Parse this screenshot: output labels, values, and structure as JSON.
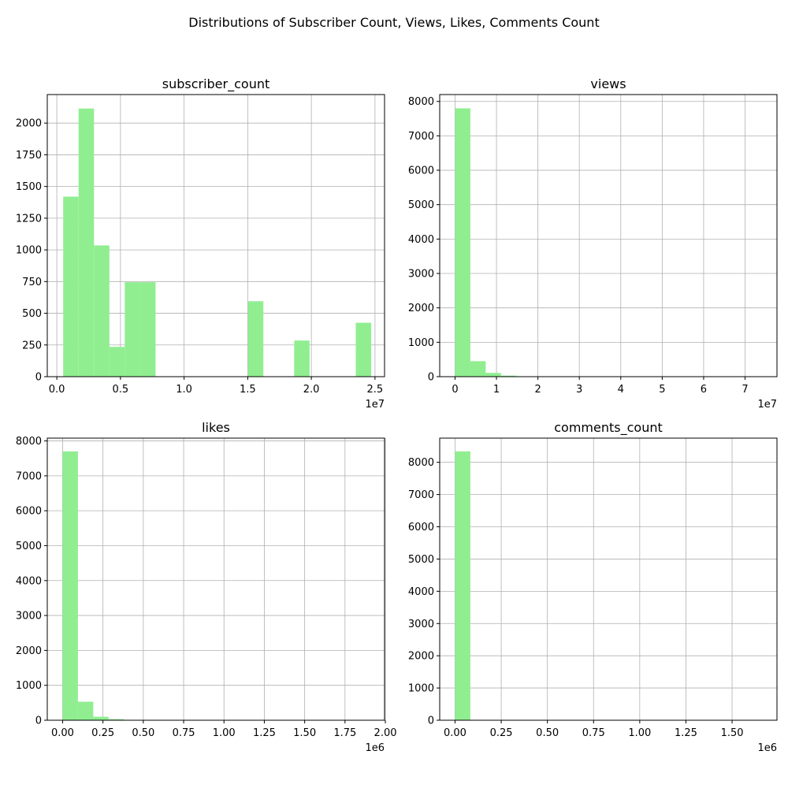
{
  "figure": {
    "suptitle": "Distributions of Subscriber Count, Views, Likes, Comments Count"
  },
  "colors": {
    "bar_fill": "#90ee90",
    "grid": "#b0b0b0",
    "axes": "#000000",
    "background": "#ffffff"
  },
  "chart_data": [
    {
      "type": "bar",
      "title": "subscriber_count",
      "xlabel": "",
      "ylabel": "",
      "grid": true,
      "x_offset_label": "1e7",
      "xlim": [
        -0.075,
        2.575
      ],
      "ylim": [
        0,
        2225
      ],
      "xticks": [
        0.0,
        0.5,
        1.0,
        1.5,
        2.0,
        2.5
      ],
      "xtick_labels": [
        "0.0",
        "0.5",
        "1.0",
        "1.5",
        "2.0",
        "2.5"
      ],
      "yticks": [
        0,
        250,
        500,
        750,
        1000,
        1250,
        1500,
        1750,
        2000
      ],
      "ytick_labels": [
        "0",
        "250",
        "500",
        "750",
        "1000",
        "1250",
        "1500",
        "1750",
        "2000"
      ],
      "bin_edges": [
        0.05,
        0.171,
        0.292,
        0.413,
        0.534,
        0.655,
        0.776,
        0.897,
        1.018,
        1.139,
        1.26,
        1.381,
        1.502,
        1.623,
        1.744,
        1.865,
        1.986,
        2.107,
        2.228,
        2.349,
        2.47
      ],
      "values": [
        1420,
        2115,
        1035,
        235,
        745,
        745,
        0,
        0,
        0,
        0,
        0,
        0,
        595,
        0,
        0,
        285,
        0,
        0,
        0,
        425
      ]
    },
    {
      "type": "bar",
      "title": "views",
      "xlabel": "",
      "ylabel": "",
      "grid": true,
      "x_offset_label": "1e7",
      "xlim": [
        -0.37,
        7.77
      ],
      "ylim": [
        0,
        8200
      ],
      "xticks": [
        0,
        1,
        2,
        3,
        4,
        5,
        6,
        7
      ],
      "xtick_labels": [
        "0",
        "1",
        "2",
        "3",
        "4",
        "5",
        "6",
        "7"
      ],
      "yticks": [
        0,
        1000,
        2000,
        3000,
        4000,
        5000,
        6000,
        7000,
        8000
      ],
      "ytick_labels": [
        "0",
        "1000",
        "2000",
        "3000",
        "4000",
        "5000",
        "6000",
        "7000",
        "8000"
      ],
      "bin_edges": [
        0.0,
        0.37,
        0.74,
        1.11,
        1.48,
        1.85,
        2.22,
        2.59,
        2.96,
        3.33,
        3.7,
        4.07,
        4.44,
        4.81,
        5.18,
        5.55,
        5.92,
        6.29,
        6.66,
        7.03,
        7.4
      ],
      "values": [
        7800,
        450,
        110,
        30,
        10,
        5,
        3,
        2,
        1,
        1,
        1,
        1,
        0,
        0,
        1,
        0,
        0,
        0,
        0,
        1
      ]
    },
    {
      "type": "bar",
      "title": "likes",
      "xlabel": "",
      "ylabel": "",
      "grid": true,
      "x_offset_label": "1e6",
      "xlim": [
        -0.095,
        1.995
      ],
      "ylim": [
        0,
        8080
      ],
      "xticks": [
        0.0,
        0.25,
        0.5,
        0.75,
        1.0,
        1.25,
        1.5,
        1.75,
        2.0
      ],
      "xtick_labels": [
        "0.00",
        "0.25",
        "0.50",
        "0.75",
        "1.00",
        "1.25",
        "1.50",
        "1.75",
        "2.00"
      ],
      "yticks": [
        0,
        1000,
        2000,
        3000,
        4000,
        5000,
        6000,
        7000,
        8000
      ],
      "ytick_labels": [
        "0",
        "1000",
        "2000",
        "3000",
        "4000",
        "5000",
        "6000",
        "7000",
        "8000"
      ],
      "bin_edges": [
        0.0,
        0.095,
        0.19,
        0.285,
        0.38,
        0.475,
        0.57,
        0.665,
        0.76,
        0.855,
        0.95,
        1.045,
        1.14,
        1.235,
        1.33,
        1.425,
        1.52,
        1.615,
        1.71,
        1.805,
        1.9
      ],
      "values": [
        7700,
        530,
        100,
        30,
        10,
        5,
        3,
        2,
        1,
        1,
        1,
        1,
        0,
        0,
        1,
        0,
        0,
        0,
        0,
        1
      ]
    },
    {
      "type": "bar",
      "title": "comments_count",
      "xlabel": "",
      "ylabel": "",
      "grid": true,
      "x_offset_label": "1e6",
      "xlim": [
        -0.083,
        1.743
      ],
      "ylim": [
        0,
        8750
      ],
      "xticks": [
        0.0,
        0.25,
        0.5,
        0.75,
        1.0,
        1.25,
        1.5
      ],
      "xtick_labels": [
        "0.00",
        "0.25",
        "0.50",
        "0.75",
        "1.00",
        "1.25",
        "1.50"
      ],
      "yticks": [
        0,
        1000,
        2000,
        3000,
        4000,
        5000,
        6000,
        7000,
        8000
      ],
      "ytick_labels": [
        "0",
        "1000",
        "2000",
        "3000",
        "4000",
        "5000",
        "6000",
        "7000",
        "8000"
      ],
      "bin_edges": [
        0.0,
        0.083,
        0.166,
        0.249,
        0.332,
        0.415,
        0.498,
        0.581,
        0.664,
        0.747,
        0.83,
        0.913,
        0.996,
        1.079,
        1.162,
        1.245,
        1.328,
        1.411,
        1.494,
        1.577,
        1.66
      ],
      "values": [
        8340,
        8,
        3,
        2,
        1,
        1,
        0,
        0,
        0,
        0,
        0,
        0,
        0,
        0,
        0,
        0,
        0,
        0,
        0,
        1
      ]
    }
  ]
}
